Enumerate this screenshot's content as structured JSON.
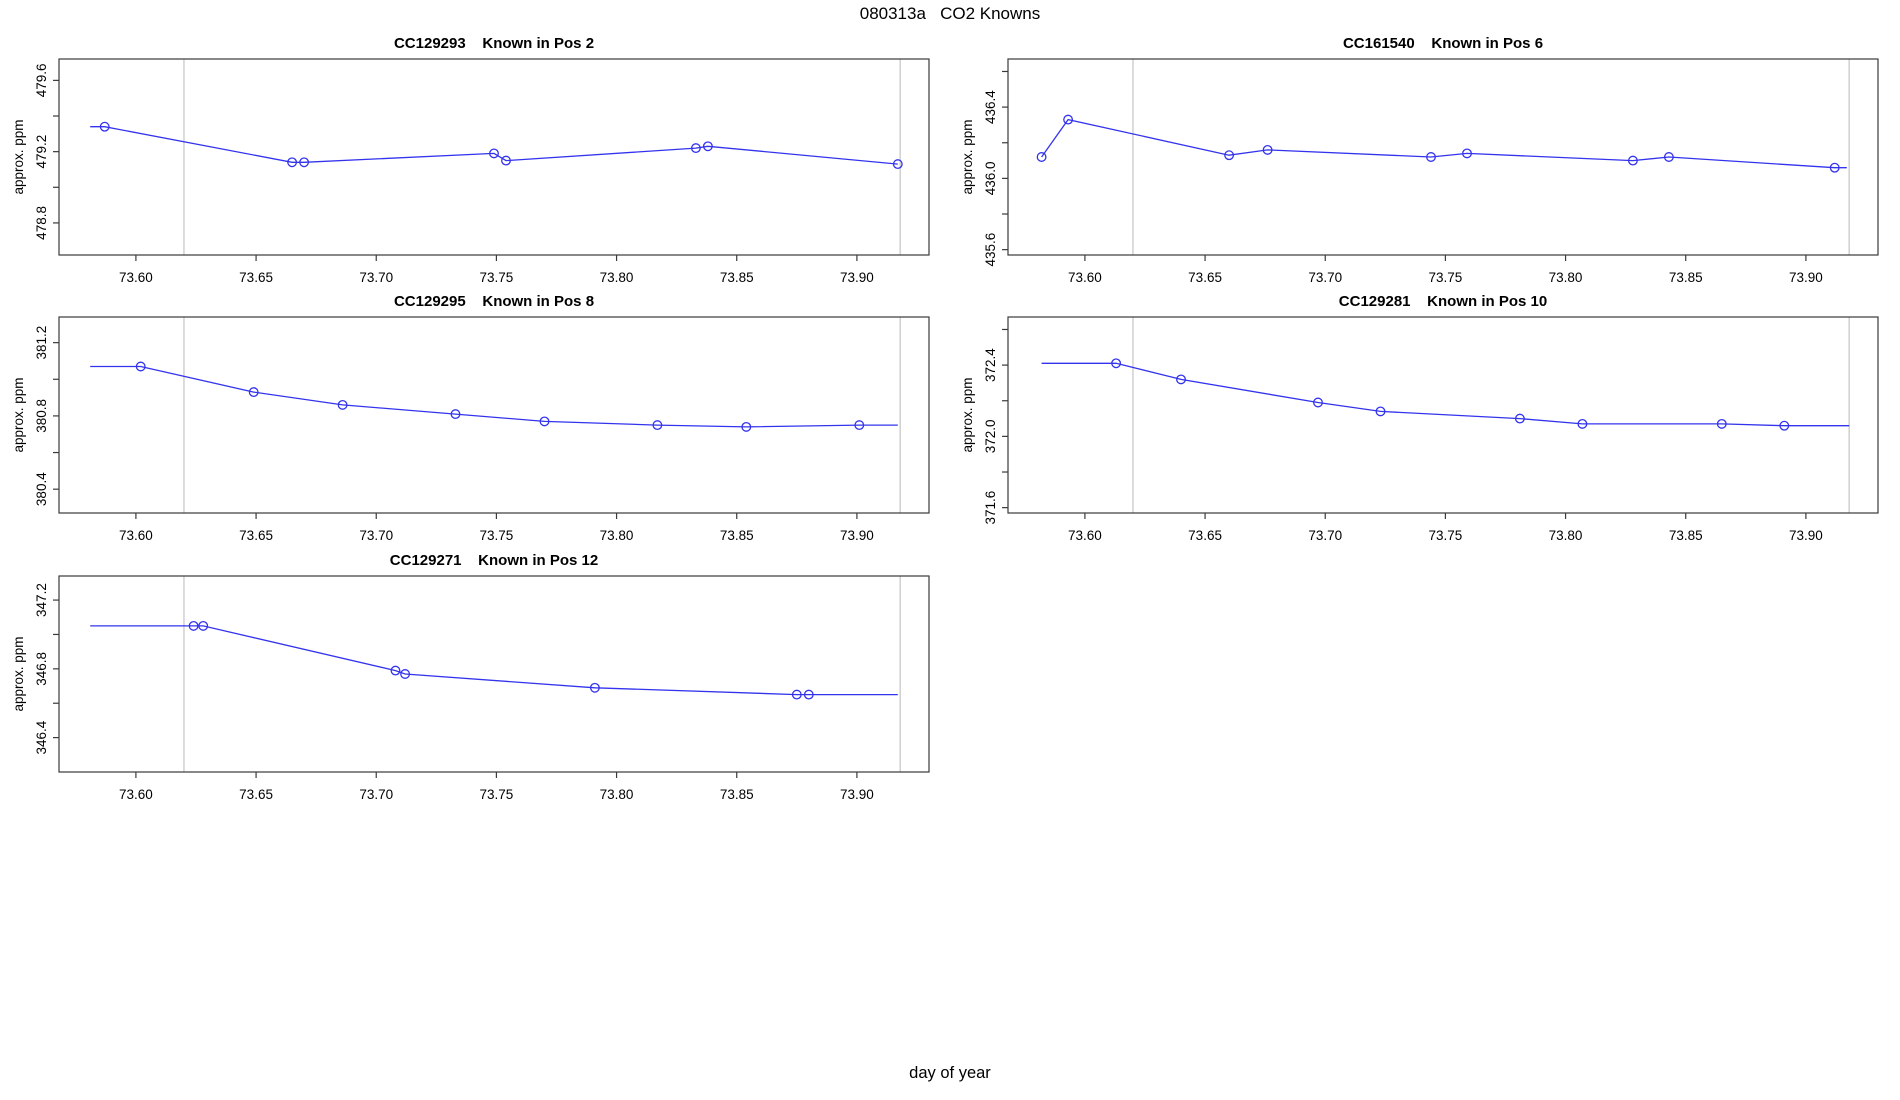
{
  "page": {
    "title": "080313a   CO2 Knowns",
    "xlabel": "day of year"
  },
  "style": {
    "line_color": "#3333ee",
    "marker_color": "#3333ee",
    "vline_color": "#c4c4c4",
    "axis_color": "#3a3a3a",
    "text_color": "#000000",
    "background": "#ffffff"
  },
  "chart_data": [
    {
      "type": "line",
      "title_id": "CC129293",
      "title_pos": "Known in Pos 2",
      "ylabel": "approx. ppm",
      "xlim": [
        73.568,
        73.93
      ],
      "ylim": [
        478.62,
        479.72
      ],
      "x_tick_values": [
        73.6,
        73.65,
        73.7,
        73.75,
        73.8,
        73.85,
        73.9
      ],
      "x_tick_labels": [
        "73.60",
        "73.65",
        "73.70",
        "73.75",
        "73.80",
        "73.85",
        "73.90"
      ],
      "y_tick_values": [
        478.8,
        479.2,
        479.6
      ],
      "y_tick_labels": [
        "478.8",
        "479.2",
        "479.6"
      ],
      "y_minor_ticks": [
        479.0,
        479.4
      ],
      "vlines": [
        73.62,
        73.918
      ],
      "lead_in_x": 73.581,
      "trail_x": null,
      "points": [
        [
          73.587,
          479.34
        ],
        [
          73.665,
          479.14
        ],
        [
          73.67,
          479.14
        ],
        [
          73.749,
          479.19
        ],
        [
          73.754,
          479.15
        ],
        [
          73.833,
          479.22
        ],
        [
          73.838,
          479.23
        ],
        [
          73.917,
          479.13
        ]
      ]
    },
    {
      "type": "line",
      "title_id": "CC161540",
      "title_pos": "Known in Pos 6",
      "ylabel": "approx. ppm",
      "xlim": [
        73.568,
        73.93
      ],
      "ylim": [
        435.57,
        436.67
      ],
      "x_tick_values": [
        73.6,
        73.65,
        73.7,
        73.75,
        73.8,
        73.85,
        73.9
      ],
      "x_tick_labels": [
        "73.60",
        "73.65",
        "73.70",
        "73.75",
        "73.80",
        "73.85",
        "73.90"
      ],
      "y_tick_values": [
        435.6,
        436.0,
        436.4
      ],
      "y_tick_labels": [
        "435.6",
        "436.0",
        "436.4"
      ],
      "y_minor_ticks": [
        435.8,
        436.2,
        436.6
      ],
      "vlines": [
        73.62,
        73.918
      ],
      "lead_in_x": null,
      "trail_x": 73.917,
      "points": [
        [
          73.582,
          436.12
        ],
        [
          73.593,
          436.33
        ],
        [
          73.66,
          436.13
        ],
        [
          73.676,
          436.16
        ],
        [
          73.744,
          436.12
        ],
        [
          73.759,
          436.14
        ],
        [
          73.828,
          436.1
        ],
        [
          73.843,
          436.12
        ],
        [
          73.912,
          436.06
        ]
      ]
    },
    {
      "type": "line",
      "title_id": "CC129295",
      "title_pos": "Known in Pos 8",
      "ylabel": "approx. ppm",
      "xlim": [
        73.568,
        73.93
      ],
      "ylim": [
        380.27,
        381.34
      ],
      "x_tick_values": [
        73.6,
        73.65,
        73.7,
        73.75,
        73.8,
        73.85,
        73.9
      ],
      "x_tick_labels": [
        "73.60",
        "73.65",
        "73.70",
        "73.75",
        "73.80",
        "73.85",
        "73.90"
      ],
      "y_tick_values": [
        380.4,
        380.8,
        381.2
      ],
      "y_tick_labels": [
        "380.4",
        "380.8",
        "381.2"
      ],
      "y_minor_ticks": [
        380.6,
        381.0
      ],
      "vlines": [
        73.62,
        73.918
      ],
      "lead_in_x": 73.581,
      "trail_x": 73.917,
      "points": [
        [
          73.602,
          381.07
        ],
        [
          73.649,
          380.93
        ],
        [
          73.686,
          380.86
        ],
        [
          73.733,
          380.81
        ],
        [
          73.77,
          380.77
        ],
        [
          73.817,
          380.75
        ],
        [
          73.854,
          380.74
        ],
        [
          73.901,
          380.75
        ]
      ]
    },
    {
      "type": "line",
      "title_id": "CC129281",
      "title_pos": "Known in Pos 10",
      "ylabel": "approx. ppm",
      "xlim": [
        73.568,
        73.93
      ],
      "ylim": [
        371.57,
        372.67
      ],
      "x_tick_values": [
        73.6,
        73.65,
        73.7,
        73.75,
        73.8,
        73.85,
        73.9
      ],
      "x_tick_labels": [
        "73.60",
        "73.65",
        "73.70",
        "73.75",
        "73.80",
        "73.85",
        "73.90"
      ],
      "y_tick_values": [
        371.6,
        372.0,
        372.4
      ],
      "y_tick_labels": [
        "371.6",
        "372.0",
        "372.4"
      ],
      "y_minor_ticks": [
        371.8,
        372.2,
        372.6
      ],
      "vlines": [
        73.62,
        73.918
      ],
      "lead_in_x": 73.582,
      "trail_x": 73.918,
      "points": [
        [
          73.613,
          372.41
        ],
        [
          73.64,
          372.32
        ],
        [
          73.697,
          372.19
        ],
        [
          73.723,
          372.14
        ],
        [
          73.781,
          372.1
        ],
        [
          73.807,
          372.07
        ],
        [
          73.865,
          372.07
        ],
        [
          73.891,
          372.06
        ]
      ]
    },
    {
      "type": "line",
      "title_id": "CC129271",
      "title_pos": "Known in Pos 12",
      "ylabel": "approx. ppm",
      "xlim": [
        73.568,
        73.93
      ],
      "ylim": [
        346.2,
        347.34
      ],
      "x_tick_values": [
        73.6,
        73.65,
        73.7,
        73.75,
        73.8,
        73.85,
        73.9
      ],
      "x_tick_labels": [
        "73.60",
        "73.65",
        "73.70",
        "73.75",
        "73.80",
        "73.85",
        "73.90"
      ],
      "y_tick_values": [
        346.4,
        346.8,
        347.2
      ],
      "y_tick_labels": [
        "346.4",
        "346.8",
        "347.2"
      ],
      "y_minor_ticks": [
        346.6,
        347.0
      ],
      "vlines": [
        73.62,
        73.918
      ],
      "lead_in_x": 73.581,
      "trail_x": 73.917,
      "points": [
        [
          73.624,
          347.05
        ],
        [
          73.628,
          347.05
        ],
        [
          73.708,
          346.79
        ],
        [
          73.712,
          346.77
        ],
        [
          73.791,
          346.69
        ],
        [
          73.875,
          346.65
        ],
        [
          73.88,
          346.65
        ]
      ]
    }
  ]
}
